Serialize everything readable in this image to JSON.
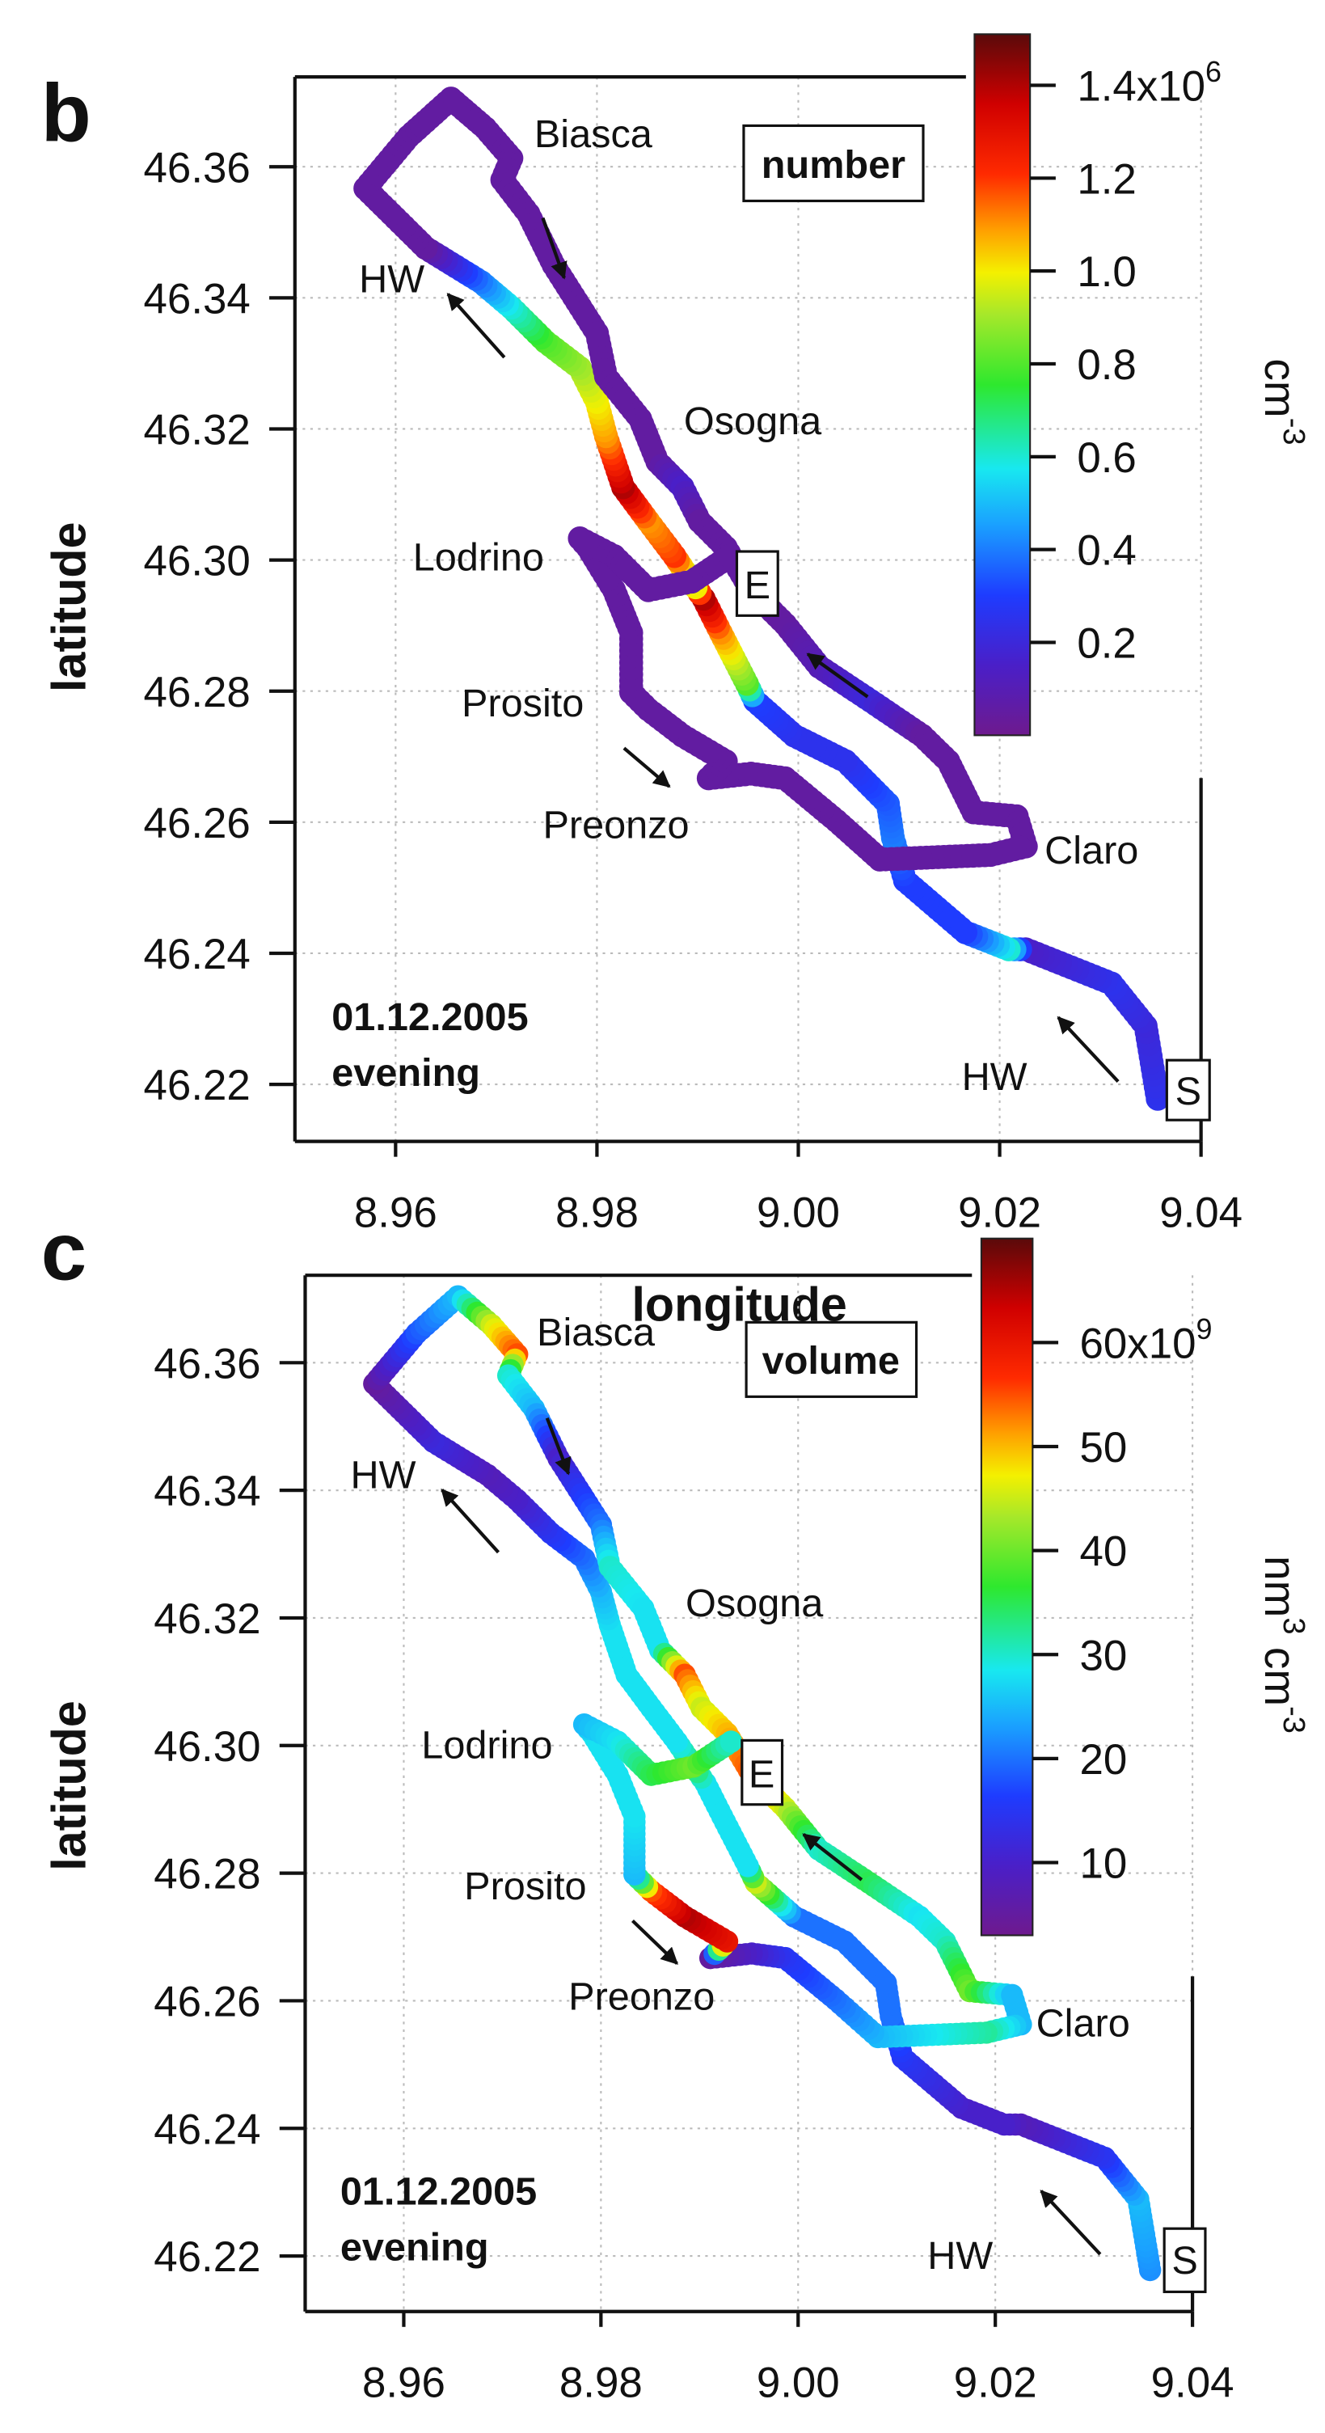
{
  "chart_data": [
    {
      "panel": "b",
      "type": "scatter",
      "xlabel": "longitude",
      "ylabel": "latitude",
      "xlim": [
        8.95,
        9.04
      ],
      "ylim": [
        46.2113,
        46.3737
      ],
      "grid": true,
      "xticks": [
        "8.96",
        "8.98",
        "9.00",
        "9.02",
        "9.04"
      ],
      "yticks": [
        "46.36",
        "46.34",
        "46.32",
        "46.30",
        "46.28",
        "46.26",
        "46.24",
        "46.22"
      ],
      "variable_label": "number",
      "date": "01.12.2005",
      "time_of_day": "evening",
      "places": {
        "biasca": "Biasca",
        "hw_north": "HW",
        "osogna": "Osogna",
        "lodrino": "Lodrino",
        "prosito": "Prosito",
        "preonzo": "Preonzo",
        "claro": "Claro",
        "hw_south": "HW"
      },
      "markers": {
        "start": "S",
        "end": "E"
      },
      "colorbar": {
        "range": [
          0,
          1.51
        ],
        "colormap": "rainbow",
        "label_parts": [
          {
            "t": "cm"
          },
          {
            "t": "-3",
            "sup": true
          }
        ],
        "ticks": [
          {
            "v": 1.4,
            "label": "1.4x10",
            "sup": "6"
          },
          {
            "v": 1.2,
            "label": "1.2"
          },
          {
            "v": 1.0,
            "label": "1.0"
          },
          {
            "v": 0.8,
            "label": "0.8"
          },
          {
            "v": 0.6,
            "label": "0.6"
          },
          {
            "v": 0.4,
            "label": "0.4"
          },
          {
            "v": 0.2,
            "label": "0.2"
          }
        ]
      },
      "track_columns": [
        "longitude",
        "latitude",
        "number (x10^6 cm^-3)"
      ],
      "track": [
        [
          9.0357,
          46.2178,
          0.25
        ],
        [
          9.0345,
          46.2289,
          0.2
        ],
        [
          9.0311,
          46.2354,
          0.25
        ],
        [
          9.0226,
          46.2406,
          0.15
        ],
        [
          9.0209,
          46.2406,
          0.6
        ],
        [
          9.0166,
          46.2432,
          0.3
        ],
        [
          9.0106,
          46.2511,
          0.3
        ],
        [
          9.0094,
          46.2576,
          0.4
        ],
        [
          9.0089,
          46.2628,
          0.35
        ],
        [
          9.0047,
          46.2693,
          0.25
        ],
        [
          8.9996,
          46.2732,
          0.25
        ],
        [
          8.9957,
          46.2785,
          0.3
        ],
        [
          8.9949,
          46.2811,
          0.8
        ],
        [
          8.9923,
          46.2889,
          1.1
        ],
        [
          8.9906,
          46.2941,
          1.4
        ],
        [
          8.9894,
          46.2967,
          0.8
        ],
        [
          8.9877,
          46.3006,
          1.2
        ],
        [
          8.9851,
          46.3059,
          1.1
        ],
        [
          8.9826,
          46.3111,
          1.4
        ],
        [
          8.9809,
          46.3189,
          1.1
        ],
        [
          8.98,
          46.3241,
          1.0
        ],
        [
          8.9783,
          46.3293,
          0.9
        ],
        [
          8.9749,
          46.3333,
          0.8
        ],
        [
          8.9715,
          46.3385,
          0.6
        ],
        [
          8.9685,
          46.3424,
          0.4
        ],
        [
          8.963,
          46.3476,
          0.05
        ],
        [
          8.957,
          46.3567,
          0.05
        ],
        [
          8.9613,
          46.3646,
          0.05
        ],
        [
          8.9655,
          46.3704,
          0.05
        ],
        [
          8.9689,
          46.3659,
          0.05
        ],
        [
          8.9715,
          46.3613,
          0.05
        ],
        [
          8.9706,
          46.358,
          0.05
        ],
        [
          8.9732,
          46.3528,
          0.05
        ],
        [
          8.9757,
          46.345,
          0.05
        ],
        [
          8.98,
          46.3346,
          0.05
        ],
        [
          8.9809,
          46.328,
          0.05
        ],
        [
          8.9843,
          46.3215,
          0.05
        ],
        [
          8.986,
          46.315,
          0.05
        ],
        [
          8.9885,
          46.3111,
          0.15
        ],
        [
          8.9902,
          46.3059,
          0.05
        ],
        [
          8.9928,
          46.3019,
          0.05
        ],
        [
          8.9953,
          46.2954,
          0.05
        ],
        [
          8.9987,
          46.2902,
          0.05
        ],
        [
          9.0021,
          46.2837,
          0.1
        ],
        [
          9.0072,
          46.2785,
          0.2
        ],
        [
          9.0123,
          46.2732,
          0.05
        ],
        [
          9.0149,
          46.2693,
          0.05
        ],
        [
          9.0174,
          46.2615,
          0.05
        ],
        [
          9.0217,
          46.2609,
          0.05
        ],
        [
          9.0226,
          46.2563,
          0.05
        ],
        [
          9.0191,
          46.255,
          0.05
        ],
        [
          9.0081,
          46.2543,
          0.05
        ],
        [
          9.0038,
          46.2602,
          0.05
        ],
        [
          8.9987,
          46.2667,
          0.05
        ],
        [
          8.9953,
          46.2674,
          0.05
        ],
        [
          8.9911,
          46.2667,
          0.05
        ],
        [
          8.9928,
          46.2693,
          0.05
        ],
        [
          8.9885,
          46.2732,
          0.05
        ],
        [
          8.9851,
          46.2772,
          0.05
        ],
        [
          8.9834,
          46.2798,
          0.05
        ],
        [
          8.9834,
          46.2889,
          0.05
        ],
        [
          8.9817,
          46.2954,
          0.05
        ],
        [
          8.9791,
          46.3019,
          0.05
        ],
        [
          8.9783,
          46.3033,
          0.05
        ],
        [
          8.9817,
          46.3006,
          0.05
        ],
        [
          8.9851,
          46.2954,
          0.05
        ],
        [
          8.9894,
          46.2967,
          0.05
        ],
        [
          8.9932,
          46.3006,
          0.05
        ]
      ]
    },
    {
      "panel": "c",
      "type": "scatter",
      "xlabel": "longitude",
      "ylabel": "latitude",
      "xlim": [
        8.95,
        9.04
      ],
      "ylim": [
        46.2113,
        46.3737
      ],
      "grid": true,
      "xticks": [
        "8.96",
        "8.98",
        "9.00",
        "9.02",
        "9.04"
      ],
      "yticks": [
        "46.36",
        "46.34",
        "46.32",
        "46.30",
        "46.28",
        "46.26",
        "46.24",
        "46.22"
      ],
      "variable_label": "volume",
      "date": "01.12.2005",
      "time_of_day": "evening",
      "places": {
        "biasca": "Biasca",
        "hw_north": "HW",
        "osogna": "Osogna",
        "lodrino": "Lodrino",
        "prosito": "Prosito",
        "preonzo": "Preonzo",
        "claro": "Claro",
        "hw_south": "HW"
      },
      "markers": {
        "start": "S",
        "end": "E"
      },
      "colorbar": {
        "range": [
          3,
          70
        ],
        "colormap": "rainbow",
        "label_parts": [
          {
            "t": "nm"
          },
          {
            "t": "3",
            "sup": true
          },
          {
            "t": " cm"
          },
          {
            "t": "-3",
            "sup": true
          }
        ],
        "ticks": [
          {
            "v": 60,
            "label": "60x10",
            "sup": "9"
          },
          {
            "v": 50,
            "label": "50"
          },
          {
            "v": 40,
            "label": "40"
          },
          {
            "v": 30,
            "label": "30"
          },
          {
            "v": 20,
            "label": "20"
          },
          {
            "v": 10,
            "label": "10"
          }
        ]
      },
      "track_columns": [
        "longitude",
        "latitude",
        "volume (x10^9 nm^3 cm^-3)"
      ],
      "track": [
        [
          9.0357,
          46.2178,
          22
        ],
        [
          9.0345,
          46.2289,
          25
        ],
        [
          9.0311,
          46.2354,
          15
        ],
        [
          9.0226,
          46.2406,
          8
        ],
        [
          9.0209,
          46.2406,
          10
        ],
        [
          9.0166,
          46.2432,
          10
        ],
        [
          9.0106,
          46.2511,
          15
        ],
        [
          9.0094,
          46.2576,
          20
        ],
        [
          9.0089,
          46.2628,
          20
        ],
        [
          9.0047,
          46.2693,
          20
        ],
        [
          8.9996,
          46.2732,
          20
        ],
        [
          8.9957,
          46.2785,
          45
        ],
        [
          8.9949,
          46.2811,
          28
        ],
        [
          8.9923,
          46.2889,
          28
        ],
        [
          8.9906,
          46.2941,
          28
        ],
        [
          8.9894,
          46.2967,
          35
        ],
        [
          8.9877,
          46.3006,
          28
        ],
        [
          8.9851,
          46.3059,
          28
        ],
        [
          8.9826,
          46.3111,
          28
        ],
        [
          8.9809,
          46.3189,
          28
        ],
        [
          8.98,
          46.3241,
          25
        ],
        [
          8.9783,
          46.3293,
          20
        ],
        [
          8.9749,
          46.3333,
          15
        ],
        [
          8.9715,
          46.3385,
          10
        ],
        [
          8.9685,
          46.3424,
          8
        ],
        [
          8.963,
          46.3476,
          12
        ],
        [
          8.957,
          46.3567,
          5
        ],
        [
          8.9613,
          46.3646,
          18
        ],
        [
          8.9655,
          46.3704,
          25
        ],
        [
          8.9689,
          46.3659,
          45
        ],
        [
          8.9715,
          46.3613,
          55
        ],
        [
          8.9706,
          46.358,
          30
        ],
        [
          8.9732,
          46.3528,
          25
        ],
        [
          8.9757,
          46.345,
          10
        ],
        [
          8.98,
          46.3346,
          20
        ],
        [
          8.9809,
          46.328,
          30
        ],
        [
          8.9843,
          46.3215,
          28
        ],
        [
          8.986,
          46.315,
          28
        ],
        [
          8.9885,
          46.3111,
          55
        ],
        [
          8.9902,
          46.3059,
          45
        ],
        [
          8.9928,
          46.3019,
          50
        ],
        [
          8.9953,
          46.2954,
          55
        ],
        [
          8.9987,
          46.2902,
          45
        ],
        [
          9.0021,
          46.2837,
          30
        ],
        [
          9.0072,
          46.2785,
          35
        ],
        [
          9.0123,
          46.2732,
          28
        ],
        [
          9.0149,
          46.2693,
          30
        ],
        [
          9.0174,
          46.2615,
          40
        ],
        [
          9.0217,
          46.2609,
          25
        ],
        [
          9.0226,
          46.2563,
          25
        ],
        [
          9.0191,
          46.255,
          32
        ],
        [
          9.0081,
          46.2543,
          25
        ],
        [
          9.0038,
          46.2602,
          20
        ],
        [
          8.9987,
          46.2667,
          15
        ],
        [
          8.9953,
          46.2674,
          10
        ],
        [
          8.9911,
          46.2667,
          5
        ],
        [
          8.9928,
          46.2693,
          60
        ],
        [
          8.9885,
          46.2732,
          65
        ],
        [
          8.9851,
          46.2772,
          55
        ],
        [
          8.9834,
          46.2798,
          25
        ],
        [
          8.9834,
          46.2889,
          28
        ],
        [
          8.9817,
          46.2954,
          28
        ],
        [
          8.9791,
          46.3019,
          28
        ],
        [
          8.9783,
          46.3033,
          25
        ],
        [
          8.9817,
          46.3006,
          28
        ],
        [
          8.9851,
          46.2954,
          35
        ],
        [
          8.9894,
          46.2967,
          40
        ],
        [
          8.9932,
          46.3006,
          30
        ]
      ]
    }
  ]
}
